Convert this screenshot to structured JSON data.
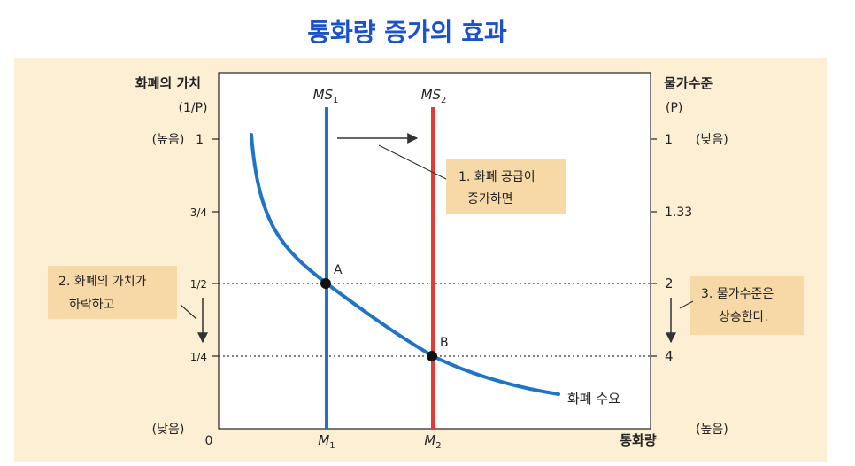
{
  "title": "통화량 증가의 효과",
  "left_axis": {
    "label_line1": "화폐의 가치",
    "label_line2": "(1/P)",
    "ticks": [
      "1",
      "3/4",
      "1/2",
      "1/4"
    ],
    "top_note": "(높음)",
    "bottom_note": "(낮음)"
  },
  "right_axis": {
    "label_line1": "물가수준",
    "label_line2": "(P)",
    "ticks": [
      "1",
      "1.33",
      "2",
      "4"
    ],
    "top_note": "(낮음)",
    "bottom_note": "(높음)"
  },
  "x_axis": {
    "origin": "0",
    "label": "통화량",
    "m1": "M",
    "m1_sub": "1",
    "m2": "M",
    "m2_sub": "2"
  },
  "supply_lines": {
    "ms1": "MS",
    "ms1_sub": "1",
    "ms2": "MS",
    "ms2_sub": "2"
  },
  "points": {
    "a": "A",
    "b": "B"
  },
  "demand_label": "화폐 수요",
  "callouts": {
    "supply_increase": [
      "1. 화폐 공급이",
      "증가하면"
    ],
    "value_falls": [
      "2. 화폐의 가치가",
      "하락하고"
    ],
    "price_rises": [
      "3. 물가수준은",
      "상승한다."
    ]
  },
  "colors": {
    "title": "#1a52cc",
    "panel": "#fcefd4",
    "callout_box": "#f7d9a8",
    "ms1": "#1f74c8",
    "ms2": "#e53935",
    "demand": "#1f74c8"
  },
  "chart_data": {
    "type": "line",
    "title": "통화량 증가의 효과",
    "xlabel": "통화량",
    "ylabel": "화폐의 가치 (1/P)",
    "y2label": "물가수준 (P)",
    "x_ticks": [
      "0",
      "M1",
      "M2"
    ],
    "y_ticks": [
      1,
      0.75,
      0.5,
      0.25
    ],
    "y2_ticks": [
      1,
      1.33,
      2,
      4
    ],
    "ylim": [
      0,
      1
    ],
    "series": [
      {
        "name": "MS1",
        "kind": "vertical",
        "x": "M1"
      },
      {
        "name": "MS2",
        "kind": "vertical",
        "x": "M2"
      },
      {
        "name": "화폐 수요",
        "kind": "curve",
        "points": [
          [
            0.22,
            1.0
          ],
          [
            1,
            0.5
          ],
          [
            2,
            0.25
          ],
          [
            3.2,
            0.06
          ]
        ]
      }
    ],
    "equilibria": [
      {
        "label": "A",
        "x": "M1",
        "value": 0.5,
        "price_level": 2
      },
      {
        "label": "B",
        "x": "M2",
        "value": 0.25,
        "price_level": 4
      }
    ]
  }
}
